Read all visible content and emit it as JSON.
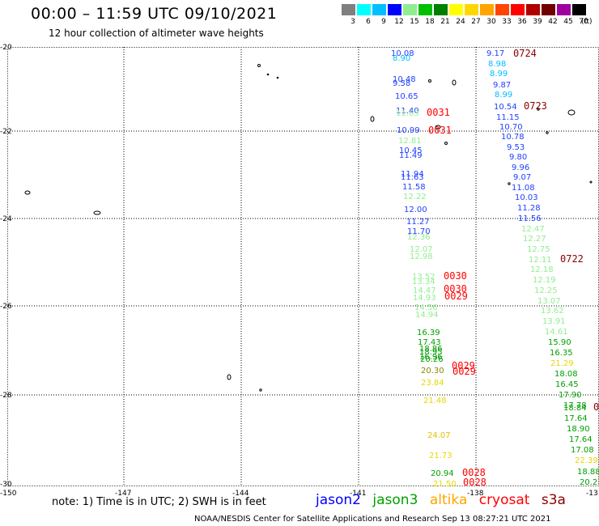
{
  "title": "00:00 – 11:59 UTC 09/10/2021",
  "subtitle": "12 hour collection of altimeter wave heights",
  "legend": {
    "levels": [
      "3",
      "6",
      "9",
      "12",
      "15",
      "18",
      "21",
      "24",
      "27",
      "30",
      "33",
      "36",
      "39",
      "42",
      "45",
      "70"
    ],
    "colors": [
      "#7f7f7f",
      "#00ffff",
      "#00bfff",
      "#0000ff",
      "#90ee90",
      "#00c000",
      "#008000",
      "#ffff00",
      "#ffd700",
      "#ffa500",
      "#ff4500",
      "#ff0000",
      "#b00000",
      "#700000",
      "#a000a0",
      "#000000"
    ],
    "unit": "(ft)"
  },
  "axes": {
    "lon_ticks": [
      "-150",
      "-147",
      "-144",
      "-141",
      "-138",
      "-13"
    ],
    "lat_ticks": [
      "-20",
      "-22",
      "-24",
      "-26",
      "-28",
      "-30"
    ]
  },
  "colors": {
    "jason2": "#0000ff",
    "jason3": "#00a000",
    "altika": "#ffa500",
    "cryosat": "#ff0000",
    "s3a": "#8b0000"
  },
  "observations": [
    {
      "id": "t1",
      "text": "10.08",
      "color": "#2040ff"
    },
    {
      "id": "t2",
      "text": "8.90",
      "color": "#00bfff"
    },
    {
      "id": "t3",
      "text": "10.48",
      "color": "#2040ff"
    },
    {
      "id": "t4",
      "text": "9.58",
      "color": "#2040ff"
    },
    {
      "id": "t5",
      "text": "10.65",
      "color": "#2040ff"
    },
    {
      "id": "t6",
      "text": "11.40",
      "color": "#2040ff"
    },
    {
      "id": "t7",
      "text": "11.63",
      "color": "#90ee90"
    },
    {
      "id": "t8",
      "text": "10.99",
      "color": "#2040ff"
    },
    {
      "id": "t9",
      "text": "12.81",
      "color": "#90ee90"
    },
    {
      "id": "t10",
      "text": "10.45",
      "color": "#2040ff"
    },
    {
      "id": "t11",
      "text": "11.49",
      "color": "#2040ff"
    },
    {
      "id": "t12",
      "text": "11.94",
      "color": "#2040ff"
    },
    {
      "id": "t13",
      "text": "11.63",
      "color": "#2040ff"
    },
    {
      "id": "t14",
      "text": "11.58",
      "color": "#2040ff"
    },
    {
      "id": "t15",
      "text": "12.22",
      "color": "#90ee90"
    },
    {
      "id": "t16",
      "text": "12.00",
      "color": "#2040ff"
    },
    {
      "id": "t17",
      "text": "11.27",
      "color": "#2040ff"
    },
    {
      "id": "t18",
      "text": "11.70",
      "color": "#2040ff"
    },
    {
      "id": "t19",
      "text": "12.36",
      "color": "#90ee90"
    },
    {
      "id": "t20",
      "text": "12.07",
      "color": "#90ee90"
    },
    {
      "id": "t21",
      "text": "12.98",
      "color": "#90ee90"
    },
    {
      "id": "t22",
      "text": "13.52",
      "color": "#90ee90"
    },
    {
      "id": "t23",
      "text": "13.34",
      "color": "#90ee90"
    },
    {
      "id": "t24",
      "text": "14.47",
      "color": "#90ee90"
    },
    {
      "id": "t25",
      "text": "14.93",
      "color": "#90ee90"
    },
    {
      "id": "t26",
      "text": "14.56",
      "color": "#90ee90"
    },
    {
      "id": "t27",
      "text": "14.94",
      "color": "#90ee90"
    },
    {
      "id": "t28",
      "text": "16.39",
      "color": "#00a000"
    },
    {
      "id": "t29",
      "text": "17.43",
      "color": "#00a000"
    },
    {
      "id": "t30",
      "text": "18.86",
      "color": "#00a000"
    },
    {
      "id": "t31",
      "text": "18.95",
      "color": "#00a000"
    },
    {
      "id": "t32",
      "text": "16.96",
      "color": "#00a000"
    },
    {
      "id": "t33",
      "text": "20.26",
      "color": "#00a000"
    },
    {
      "id": "t34",
      "text": "20.30",
      "color": "#888800"
    },
    {
      "id": "t35",
      "text": "23.84",
      "color": "#e6d800"
    },
    {
      "id": "t36",
      "text": "21.48",
      "color": "#e6d800"
    },
    {
      "id": "t37",
      "text": "24.07",
      "color": "#e6c000"
    },
    {
      "id": "t38",
      "text": "21.73",
      "color": "#e6d800"
    },
    {
      "id": "t39",
      "text": "20.94",
      "color": "#00a000"
    },
    {
      "id": "t40",
      "text": "21.50",
      "color": "#e6d800"
    },
    {
      "id": "u1",
      "text": "9.17",
      "color": "#2040ff"
    },
    {
      "id": "u2",
      "text": "8.98",
      "color": "#00bfff"
    },
    {
      "id": "u3",
      "text": "8.99",
      "color": "#00bfff"
    },
    {
      "id": "u4",
      "text": "9.87",
      "color": "#2040ff"
    },
    {
      "id": "u5",
      "text": "8.99",
      "color": "#00bfff"
    },
    {
      "id": "u6",
      "text": "10.54",
      "color": "#2040ff"
    },
    {
      "id": "u7",
      "text": "11.15",
      "color": "#2040ff"
    },
    {
      "id": "u8",
      "text": "10.70",
      "color": "#2040ff"
    },
    {
      "id": "u9",
      "text": "10.78",
      "color": "#2040ff"
    },
    {
      "id": "u10",
      "text": "9.53",
      "color": "#2040ff"
    },
    {
      "id": "u11",
      "text": "9.80",
      "color": "#2040ff"
    },
    {
      "id": "u12",
      "text": "9.96",
      "color": "#2040ff"
    },
    {
      "id": "u13",
      "text": "9.07",
      "color": "#2040ff"
    },
    {
      "id": "u14",
      "text": "11.08",
      "color": "#2040ff"
    },
    {
      "id": "u15",
      "text": "10.03",
      "color": "#2040ff"
    },
    {
      "id": "u16",
      "text": "11.28",
      "color": "#2040ff"
    },
    {
      "id": "u17",
      "text": "11.56",
      "color": "#2040ff"
    },
    {
      "id": "u18",
      "text": "12.47",
      "color": "#90ee90"
    },
    {
      "id": "u19",
      "text": "12.27",
      "color": "#90ee90"
    },
    {
      "id": "u20",
      "text": "12.75",
      "color": "#90ee90"
    },
    {
      "id": "u21",
      "text": "12.11",
      "color": "#90ee90"
    },
    {
      "id": "u22",
      "text": "12.18",
      "color": "#90ee90"
    },
    {
      "id": "u23",
      "text": "12.19",
      "color": "#90ee90"
    },
    {
      "id": "u24",
      "text": "12.25",
      "color": "#90ee90"
    },
    {
      "id": "u25",
      "text": "13.07",
      "color": "#90ee90"
    },
    {
      "id": "u26",
      "text": "13.62",
      "color": "#90ee90"
    },
    {
      "id": "u27",
      "text": "13.91",
      "color": "#90ee90"
    },
    {
      "id": "u28",
      "text": "14.61",
      "color": "#90ee90"
    },
    {
      "id": "u29",
      "text": "15.90",
      "color": "#00a000"
    },
    {
      "id": "u30",
      "text": "16.35",
      "color": "#00a000"
    },
    {
      "id": "u31",
      "text": "21.29",
      "color": "#e6d800"
    },
    {
      "id": "u32",
      "text": "18.08",
      "color": "#00a000"
    },
    {
      "id": "u33",
      "text": "16.45",
      "color": "#00a000"
    },
    {
      "id": "u34",
      "text": "17.90",
      "color": "#00a000"
    },
    {
      "id": "u35",
      "text": "17.78",
      "color": "#00a000"
    },
    {
      "id": "u36",
      "text": "18.84",
      "color": "#00a000"
    },
    {
      "id": "u37",
      "text": "17.64",
      "color": "#00a000"
    },
    {
      "id": "u38",
      "text": "18.90",
      "color": "#00a000"
    },
    {
      "id": "u39",
      "text": "17.64",
      "color": "#00a000"
    },
    {
      "id": "u40",
      "text": "17.08",
      "color": "#00a000"
    },
    {
      "id": "u41",
      "text": "22.39",
      "color": "#e6d800"
    },
    {
      "id": "u42",
      "text": "18.88",
      "color": "#00a000"
    },
    {
      "id": "u43",
      "text": "20.2",
      "color": "#00a000"
    }
  ],
  "pass_times": [
    {
      "id": "p1",
      "text": "0724",
      "color": "#8b0000"
    },
    {
      "id": "p2",
      "text": "0723",
      "color": "#8b0000"
    },
    {
      "id": "p3",
      "text": "0722",
      "color": "#8b0000"
    },
    {
      "id": "p4",
      "text": "0031",
      "color": "#ff0000"
    },
    {
      "id": "p5",
      "text": "0031",
      "color": "#ff0000"
    },
    {
      "id": "p6",
      "text": "0030",
      "color": "#ff0000"
    },
    {
      "id": "p7",
      "text": "0030",
      "color": "#ff0000"
    },
    {
      "id": "p8",
      "text": "0029",
      "color": "#ff0000"
    },
    {
      "id": "p9",
      "text": "0029",
      "color": "#ff0000"
    },
    {
      "id": "p10",
      "text": "0029",
      "color": "#ff0000"
    },
    {
      "id": "p11",
      "text": "0028",
      "color": "#ff0000"
    },
    {
      "id": "p12",
      "text": "0028",
      "color": "#ff0000"
    },
    {
      "id": "p13",
      "text": "0",
      "color": "#8b0000"
    }
  ],
  "note": "note:  1) Time is in UTC;  2) SWH is in feet",
  "satellites": [
    "jason2",
    "jason3",
    "altika",
    "cryosat",
    "s3a"
  ],
  "footer": "NOAA/NESDIS Center for Satellite Applications and Research    Sep 13 08:27:21 UTC 2021"
}
